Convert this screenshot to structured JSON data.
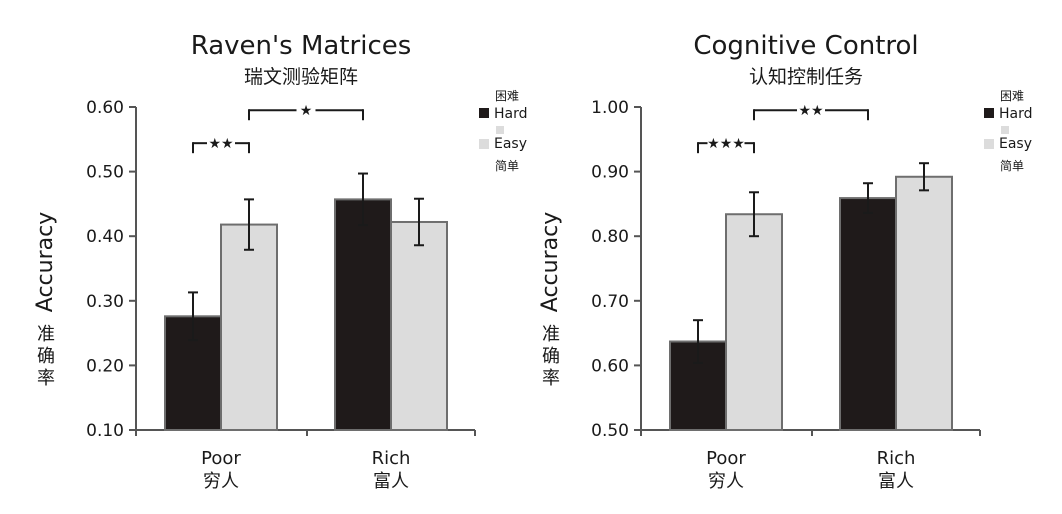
{
  "colors": {
    "hard": "#1f1a1a",
    "easy": "#dcdcdc",
    "bar_stroke": "#6e6e6e",
    "axis": "#555555",
    "text": "#1a1a1a"
  },
  "chart_data": [
    {
      "type": "bar",
      "title": "Raven's Matrices",
      "subtitle": "瑞文测验矩阵",
      "ylabel": "Accuracy",
      "ylabel_cn": "准确率",
      "ylim": [
        0.1,
        0.6
      ],
      "yticks": [
        "0.60",
        "0.50",
        "0.40",
        "0.30",
        "0.20",
        "0.10"
      ],
      "categories": [
        "Poor",
        "Rich"
      ],
      "categories_cn": [
        "穷人",
        "富人"
      ],
      "legend": {
        "placement": "top-right",
        "items": [
          {
            "label": "Hard",
            "label_cn": "困难"
          },
          {
            "label": "Easy",
            "label_cn": "简单"
          }
        ]
      },
      "series": [
        {
          "name": "Hard",
          "values": [
            0.276,
            0.457
          ],
          "errors": [
            0.037,
            0.04
          ]
        },
        {
          "name": "Easy",
          "values": [
            0.418,
            0.422
          ],
          "errors": [
            0.039,
            0.036
          ]
        }
      ],
      "significance": [
        {
          "label": "★★",
          "level": 0.544,
          "between": "Poor Hard vs Poor Easy"
        },
        {
          "label": "★",
          "level": 0.595,
          "between": "Poor Easy vs Rich Hard"
        }
      ]
    },
    {
      "type": "bar",
      "title": "Cognitive Control",
      "subtitle": "认知控制任务",
      "ylabel": "Accuracy",
      "ylabel_cn": "准确率",
      "ylim": [
        0.5,
        1.0
      ],
      "yticks": [
        "1.00",
        "0.90",
        "0.80",
        "0.70",
        "0.60",
        "0.50"
      ],
      "categories": [
        "Poor",
        "Rich"
      ],
      "categories_cn": [
        "穷人",
        "富人"
      ],
      "legend": {
        "placement": "top-right",
        "items": [
          {
            "label": "Hard",
            "label_cn": "困难"
          },
          {
            "label": "Easy",
            "label_cn": "简单"
          }
        ]
      },
      "series": [
        {
          "name": "Hard",
          "values": [
            0.637,
            0.859
          ],
          "errors": [
            0.033,
            0.023
          ]
        },
        {
          "name": "Easy",
          "values": [
            0.834,
            0.892
          ],
          "errors": [
            0.034,
            0.021
          ]
        }
      ],
      "significance": [
        {
          "label": "★★★",
          "level": 0.944,
          "between": "Poor Hard vs Poor Easy"
        },
        {
          "label": "★★",
          "level": 0.995,
          "between": "Poor Easy vs Rich Hard"
        }
      ]
    }
  ]
}
